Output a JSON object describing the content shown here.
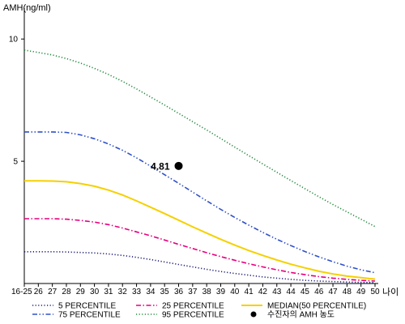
{
  "chart_data": {
    "type": "line",
    "ylabel": "AMH(ng/ml)",
    "xlabel": "나이",
    "categories": [
      "16-25",
      "26",
      "27",
      "28",
      "29",
      "30",
      "31",
      "32",
      "33",
      "34",
      "35",
      "36",
      "37",
      "38",
      "39",
      "40",
      "41",
      "42",
      "43",
      "44",
      "45",
      "46",
      "47",
      "48",
      "49",
      "50"
    ],
    "ylim": [
      0,
      11
    ],
    "yticks": [
      5,
      10
    ],
    "grid": false,
    "legend_position": "bottom",
    "series": [
      {
        "name": "5 PERCENTILE",
        "color": "#1f1f7a",
        "dash": "dotted",
        "values": [
          1.3,
          1.3,
          1.3,
          1.29,
          1.27,
          1.25,
          1.21,
          1.15,
          1.07,
          0.98,
          0.88,
          0.78,
          0.68,
          0.58,
          0.49,
          0.41,
          0.34,
          0.27,
          0.22,
          0.17,
          0.13,
          0.1,
          0.08,
          0.06,
          0.05,
          0.04
        ]
      },
      {
        "name": "25 PERCENTILE",
        "color": "#e6007e",
        "dash": "dashdot",
        "values": [
          2.65,
          2.65,
          2.65,
          2.63,
          2.58,
          2.51,
          2.41,
          2.27,
          2.11,
          1.95,
          1.78,
          1.6,
          1.43,
          1.26,
          1.1,
          0.95,
          0.81,
          0.68,
          0.56,
          0.45,
          0.36,
          0.28,
          0.22,
          0.17,
          0.13,
          0.1
        ]
      },
      {
        "name": "MEDIAN(50 PERCENTILE)",
        "color": "#f5d000",
        "dash": "solid",
        "values": [
          4.2,
          4.2,
          4.19,
          4.16,
          4.09,
          3.98,
          3.82,
          3.62,
          3.38,
          3.12,
          2.86,
          2.59,
          2.32,
          2.06,
          1.81,
          1.57,
          1.35,
          1.15,
          0.96,
          0.79,
          0.64,
          0.5,
          0.39,
          0.3,
          0.24,
          0.18
        ]
      },
      {
        "name": "75 PERCENTILE",
        "color": "#3050c8",
        "dash": "dashdotdot",
        "values": [
          6.2,
          6.2,
          6.2,
          6.18,
          6.08,
          5.92,
          5.71,
          5.45,
          5.14,
          4.8,
          4.45,
          4.1,
          3.74,
          3.38,
          3.03,
          2.7,
          2.39,
          2.09,
          1.81,
          1.55,
          1.31,
          1.09,
          0.89,
          0.71,
          0.56,
          0.44
        ]
      },
      {
        "name": "95 PERCENTILE",
        "color": "#1f8a3a",
        "dash": "dotted",
        "values": [
          9.55,
          9.45,
          9.35,
          9.2,
          9.02,
          8.8,
          8.55,
          8.27,
          7.96,
          7.63,
          7.3,
          6.96,
          6.62,
          6.28,
          5.93,
          5.58,
          5.23,
          4.89,
          4.55,
          4.21,
          3.88,
          3.55,
          3.23,
          2.93,
          2.63,
          2.33
        ]
      }
    ],
    "point": {
      "name": "수진자의 AMH 농도",
      "x": "36",
      "y": 4.81,
      "label": "4.81",
      "color": "#000000"
    }
  }
}
